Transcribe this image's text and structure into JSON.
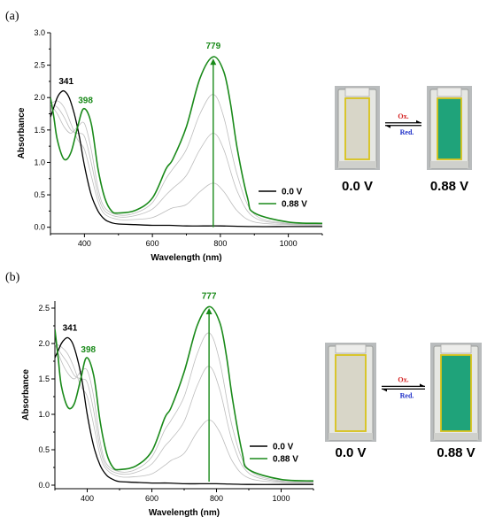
{
  "panels": [
    {
      "label": "(a)",
      "photo_labels": [
        "0.0 V",
        "0.88 V"
      ],
      "ox_label": "Ox.",
      "red_label": "Red.",
      "colors": {
        "reduced": "#000000",
        "oxidized": "#1a8a1a",
        "intermediate": "#bdbdbd",
        "cuvette_reduced": "#d8d6c8",
        "cuvette_oxidized": "#1fa37a"
      }
    },
    {
      "label": "(b)",
      "photo_labels": [
        "0.0 V",
        "0.88 V"
      ],
      "ox_label": "Ox.",
      "red_label": "Red.",
      "colors": {
        "reduced": "#000000",
        "oxidized": "#1a8a1a",
        "intermediate": "#bdbdbd",
        "cuvette_reduced": "#d8d6c8",
        "cuvette_oxidized": "#1fa37a"
      }
    }
  ],
  "chart_data": [
    {
      "type": "line",
      "title": "",
      "xlabel": "Wavelength (nm)",
      "ylabel": "Absorbance",
      "xlim": [
        300,
        1100
      ],
      "ylim": [
        -0.1,
        3.0
      ],
      "xticks": [
        400,
        600,
        800,
        1000
      ],
      "yticks": [
        0.0,
        0.5,
        1.0,
        1.5,
        2.0,
        2.5,
        3.0
      ],
      "ytick_labels": [
        "0.0",
        "0.5",
        "1.0",
        "1.5",
        "2.0",
        "2.5",
        "3.0"
      ],
      "legend_position": "right",
      "annotations": [
        {
          "text": "341",
          "x": 341,
          "y": 2.1,
          "series": "0.0 V"
        },
        {
          "text": "398",
          "x": 398,
          "y": 1.83,
          "series": "0.88 V"
        },
        {
          "text": "779",
          "x": 779,
          "y": 2.63,
          "series": "0.88 V"
        }
      ],
      "arrow": {
        "x": 779,
        "from": 0.0,
        "to": 2.6
      },
      "series": [
        {
          "name": "0.0 V",
          "role": "reduced",
          "x": [
            300,
            310,
            320,
            330,
            341,
            355,
            370,
            385,
            400,
            420,
            440,
            460,
            480,
            500,
            550,
            600,
            650,
            700,
            750,
            800,
            900,
            1000,
            1100
          ],
          "y": [
            1.7,
            1.85,
            2.0,
            2.08,
            2.1,
            2.0,
            1.75,
            1.4,
            0.95,
            0.5,
            0.25,
            0.12,
            0.07,
            0.05,
            0.04,
            0.03,
            0.03,
            0.02,
            0.02,
            0.02,
            0.01,
            0.01,
            0.01
          ]
        },
        {
          "role": "intermediate",
          "x": [
            300,
            320,
            340,
            360,
            380,
            400,
            420,
            440,
            460,
            500,
            550,
            600,
            640,
            660,
            700,
            740,
            779,
            810,
            850,
            900,
            1000,
            1100
          ],
          "y": [
            1.9,
            1.95,
            1.85,
            1.6,
            1.35,
            1.2,
            0.8,
            0.4,
            0.2,
            0.12,
            0.12,
            0.15,
            0.25,
            0.3,
            0.35,
            0.55,
            0.68,
            0.55,
            0.25,
            0.08,
            0.04,
            0.03
          ]
        },
        {
          "role": "intermediate",
          "x": [
            300,
            320,
            340,
            360,
            380,
            400,
            420,
            440,
            460,
            500,
            550,
            600,
            640,
            660,
            700,
            740,
            779,
            810,
            850,
            900,
            1000,
            1100
          ],
          "y": [
            1.9,
            1.85,
            1.7,
            1.5,
            1.45,
            1.4,
            1.0,
            0.5,
            0.25,
            0.16,
            0.18,
            0.28,
            0.5,
            0.6,
            0.8,
            1.2,
            1.45,
            1.2,
            0.55,
            0.15,
            0.05,
            0.04
          ]
        },
        {
          "role": "intermediate",
          "x": [
            300,
            320,
            340,
            360,
            380,
            400,
            420,
            440,
            460,
            500,
            550,
            600,
            640,
            660,
            700,
            740,
            779,
            810,
            850,
            900,
            1000,
            1100
          ],
          "y": [
            1.9,
            1.75,
            1.55,
            1.45,
            1.55,
            1.6,
            1.2,
            0.6,
            0.3,
            0.19,
            0.22,
            0.38,
            0.75,
            0.9,
            1.2,
            1.75,
            2.05,
            1.7,
            0.8,
            0.2,
            0.06,
            0.05
          ]
        },
        {
          "name": "0.88 V",
          "role": "oxidized",
          "x": [
            300,
            310,
            320,
            340,
            360,
            380,
            398,
            420,
            440,
            460,
            480,
            500,
            550,
            600,
            640,
            660,
            700,
            740,
            779,
            810,
            830,
            850,
            880,
            900,
            1000,
            1100
          ],
          "y": [
            2.0,
            1.7,
            1.35,
            1.05,
            1.15,
            1.55,
            1.83,
            1.6,
            0.9,
            0.45,
            0.25,
            0.22,
            0.26,
            0.45,
            0.9,
            1.05,
            1.55,
            2.3,
            2.63,
            2.4,
            1.9,
            1.2,
            0.45,
            0.22,
            0.08,
            0.06
          ]
        }
      ]
    },
    {
      "type": "line",
      "title": "",
      "xlabel": "Wavelength (nm)",
      "ylabel": "Absorbance",
      "xlim": [
        300,
        1100
      ],
      "ylim": [
        -0.05,
        2.6
      ],
      "xticks": [
        400,
        600,
        800,
        1000
      ],
      "yticks": [
        0.0,
        0.5,
        1.0,
        1.5,
        2.0,
        2.5
      ],
      "ytick_labels": [
        "0.0",
        "0.5",
        "1.0",
        "1.5",
        "2.0",
        "2.5"
      ],
      "legend_position": "right",
      "annotations": [
        {
          "text": "341",
          "x": 341,
          "y": 2.08,
          "series": "0.0 V"
        },
        {
          "text": "398",
          "x": 398,
          "y": 1.8,
          "series": "0.88 V"
        },
        {
          "text": "777",
          "x": 777,
          "y": 2.52,
          "series": "0.88 V"
        }
      ],
      "arrow": {
        "x": 777,
        "from": 0.05,
        "to": 2.5
      },
      "series": [
        {
          "name": "0.0 V",
          "role": "reduced",
          "x": [
            300,
            310,
            320,
            330,
            341,
            355,
            370,
            385,
            400,
            420,
            440,
            460,
            480,
            500,
            550,
            600,
            650,
            700,
            750,
            800,
            900,
            1000,
            1100
          ],
          "y": [
            1.8,
            1.9,
            2.0,
            2.06,
            2.08,
            2.0,
            1.78,
            1.45,
            1.0,
            0.55,
            0.28,
            0.14,
            0.08,
            0.05,
            0.04,
            0.03,
            0.03,
            0.02,
            0.02,
            0.02,
            0.01,
            0.01,
            0.01
          ]
        },
        {
          "role": "intermediate",
          "x": [
            300,
            320,
            340,
            360,
            380,
            400,
            420,
            440,
            460,
            500,
            550,
            600,
            640,
            660,
            700,
            740,
            777,
            810,
            850,
            900,
            1000,
            1100
          ],
          "y": [
            2.0,
            1.95,
            1.85,
            1.65,
            1.4,
            1.25,
            0.85,
            0.42,
            0.22,
            0.12,
            0.12,
            0.16,
            0.28,
            0.35,
            0.45,
            0.75,
            0.92,
            0.75,
            0.33,
            0.1,
            0.04,
            0.03
          ]
        },
        {
          "role": "intermediate",
          "x": [
            300,
            320,
            340,
            360,
            380,
            400,
            420,
            440,
            460,
            500,
            550,
            600,
            640,
            660,
            700,
            740,
            777,
            810,
            850,
            900,
            1000,
            1100
          ],
          "y": [
            2.0,
            1.85,
            1.72,
            1.55,
            1.5,
            1.45,
            1.05,
            0.52,
            0.26,
            0.16,
            0.18,
            0.3,
            0.55,
            0.65,
            0.9,
            1.4,
            1.68,
            1.35,
            0.6,
            0.17,
            0.05,
            0.04
          ]
        },
        {
          "role": "intermediate",
          "x": [
            300,
            320,
            340,
            360,
            380,
            400,
            420,
            440,
            460,
            500,
            550,
            600,
            640,
            660,
            700,
            740,
            777,
            810,
            850,
            900,
            1000,
            1100
          ],
          "y": [
            2.0,
            1.75,
            1.58,
            1.5,
            1.6,
            1.62,
            1.25,
            0.62,
            0.3,
            0.19,
            0.22,
            0.4,
            0.78,
            0.92,
            1.25,
            1.85,
            2.15,
            1.75,
            0.8,
            0.22,
            0.06,
            0.05
          ]
        },
        {
          "name": "0.88 V",
          "role": "oxidized",
          "x": [
            300,
            310,
            320,
            340,
            360,
            380,
            398,
            420,
            440,
            460,
            480,
            500,
            550,
            600,
            640,
            660,
            700,
            740,
            777,
            810,
            830,
            850,
            880,
            900,
            1000,
            1100
          ],
          "y": [
            2.2,
            1.8,
            1.4,
            1.1,
            1.15,
            1.5,
            1.8,
            1.55,
            0.9,
            0.45,
            0.25,
            0.22,
            0.27,
            0.48,
            0.95,
            1.1,
            1.6,
            2.25,
            2.52,
            2.3,
            1.85,
            1.2,
            0.45,
            0.22,
            0.08,
            0.06
          ]
        }
      ]
    }
  ]
}
